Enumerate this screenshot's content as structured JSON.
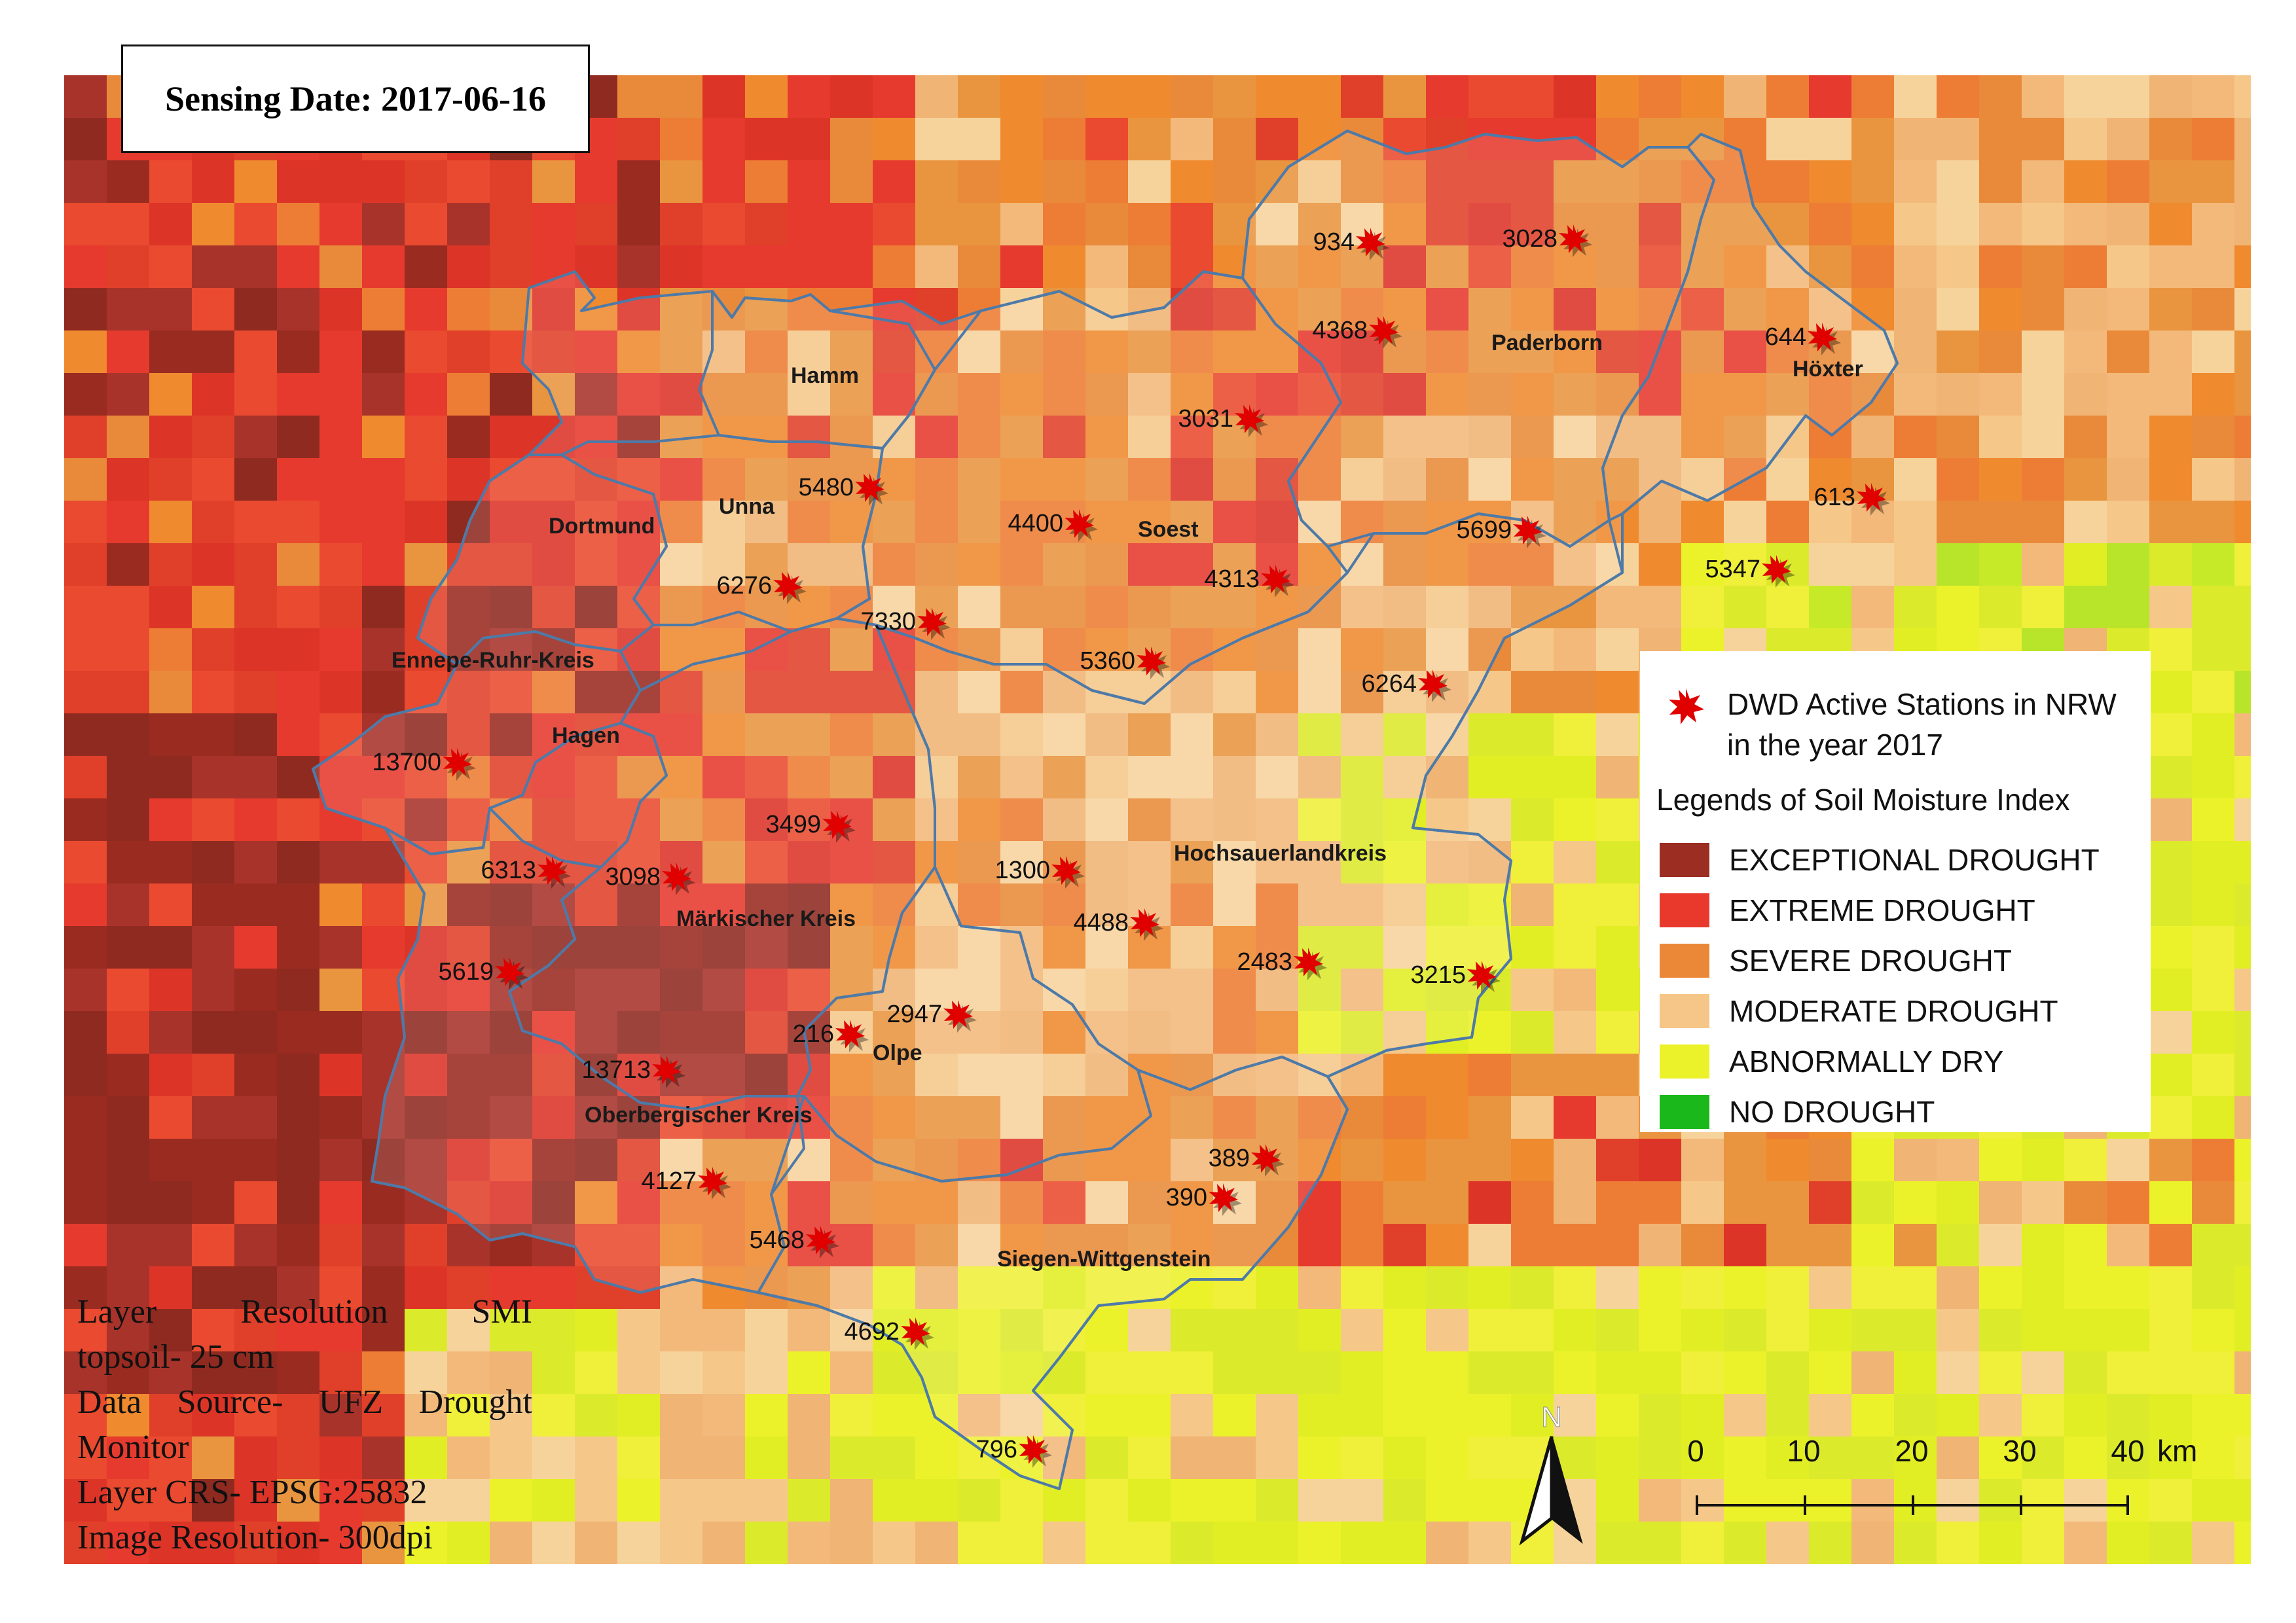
{
  "title": "Sensing Date: 2017-06-16",
  "colors": {
    "exceptional": "#9c2d22",
    "extreme": "#e8392c",
    "severe": "#ea8838",
    "moderate": "#f6c688",
    "abnormally_dry": "#ecf22a",
    "no_drought": "#1ab81a",
    "boundary": "#4d7aa8",
    "station": "#e00000"
  },
  "legend": {
    "station_label_line1": "DWD Active Stations in NRW",
    "station_label_line2": "in the year 2017",
    "heading": "Legends of Soil Moisture Index",
    "items": [
      {
        "label": "EXCEPTIONAL DROUGHT",
        "color": "#9c2d22"
      },
      {
        "label": "EXTREME DROUGHT",
        "color": "#e8392c"
      },
      {
        "label": "SEVERE DROUGHT",
        "color": "#ea8838"
      },
      {
        "label": "MODERATE DROUGHT",
        "color": "#f6c688"
      },
      {
        "label": "ABNORMALLY DRY",
        "color": "#ecf22a"
      },
      {
        "label": "NO DROUGHT",
        "color": "#1ab81a"
      }
    ]
  },
  "districts": [
    "Hamm",
    "Unna",
    "Dortmund",
    "Soest",
    "Paderborn",
    "Höxter",
    "Ennepe-Ruhr-Kreis",
    "Hagen",
    "Hochsauerlandkreis",
    "Märkischer Kreis",
    "Olpe",
    "Oberbergischer Kreis",
    "Siegen-Wittgenstein"
  ],
  "stations": [
    "934",
    "3028",
    "4368",
    "644",
    "3031",
    "5480",
    "4400",
    "5699",
    "613",
    "4313",
    "5347",
    "6276",
    "7330",
    "5360",
    "6264",
    "13700",
    "3499",
    "6313",
    "3098",
    "1300",
    "4488",
    "2483",
    "3215",
    "5619",
    "2947",
    "216",
    "13713",
    "389",
    "4127",
    "390",
    "5468",
    "4692",
    "796"
  ],
  "info": {
    "line1": "Layer Resolution SMI",
    "line2": "topsoil- 25 cm",
    "line3": "Data Source- UFZ Drought",
    "line4": "Monitor",
    "line5": "Layer CRS- EPSG:25832",
    "line6": "Image Resolution- 300dpi"
  },
  "north_label": "N",
  "scale": {
    "ticks": [
      "0",
      "10",
      "20",
      "30",
      "40"
    ],
    "unit": "km"
  }
}
